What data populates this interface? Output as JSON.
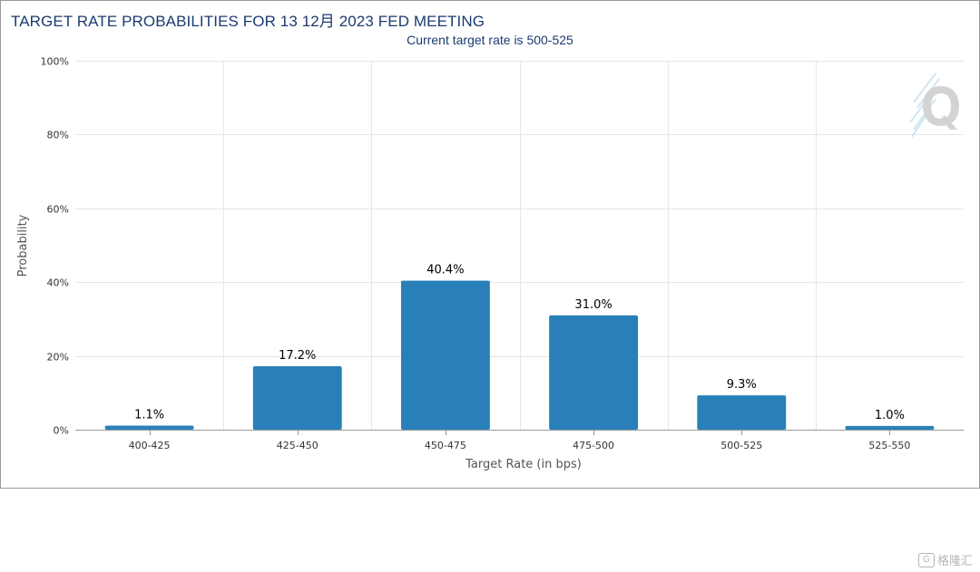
{
  "title": "TARGET RATE PROBABILITIES FOR 13 12月 2023 FED MEETING",
  "subtitle": "Current target rate is 500-525",
  "watermark": "格隆汇",
  "colors": {
    "bar": "#2980b9",
    "grid": "#e6e6e6",
    "title": "#1b3b6f"
  },
  "chart_data": {
    "type": "bar",
    "title": "TARGET RATE PROBABILITIES FOR 13 12月 2023 FED MEETING",
    "subtitle": "Current target rate is 500-525",
    "xlabel": "Target Rate (in bps)",
    "ylabel": "Probability",
    "categories": [
      "400-425",
      "425-450",
      "450-475",
      "475-500",
      "500-525",
      "525-550"
    ],
    "values": [
      1.1,
      17.2,
      40.4,
      31.0,
      9.3,
      1.0
    ],
    "value_labels": [
      "1.1%",
      "17.2%",
      "40.4%",
      "31.0%",
      "9.3%",
      "1.0%"
    ],
    "ylim": [
      0,
      100
    ],
    "yticks": [
      0,
      20,
      40,
      60,
      80,
      100
    ],
    "ytick_labels": [
      "0%",
      "20%",
      "40%",
      "60%",
      "80%",
      "100%"
    ],
    "grid": true,
    "legend": "none"
  }
}
